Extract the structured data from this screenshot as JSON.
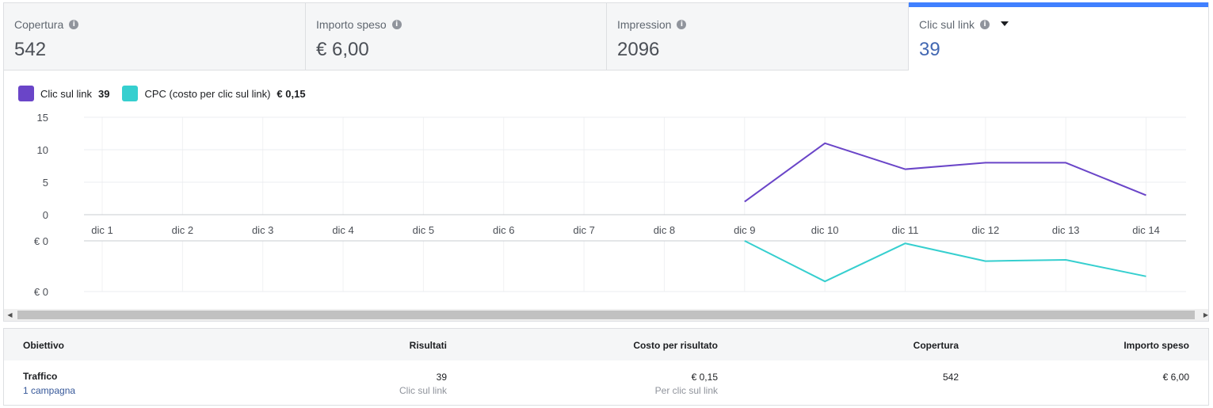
{
  "metrics": [
    {
      "label": "Copertura",
      "value": "542"
    },
    {
      "label": "Importo speso",
      "value": "€ 6,00"
    },
    {
      "label": "Impression",
      "value": "2096"
    },
    {
      "label": "Clic sul link",
      "value": "39",
      "selected": true
    }
  ],
  "info_glyph": "i",
  "legend": [
    {
      "label": "Clic sul link",
      "value": "39",
      "color": "#6a45c8"
    },
    {
      "label": "CPC (costo per clic sul link)",
      "value": "€ 0,15",
      "color": "#36cfcf"
    }
  ],
  "chart_data": {
    "type": "line",
    "categories": [
      "dic 1",
      "dic 2",
      "dic 3",
      "dic 4",
      "dic 5",
      "dic 6",
      "dic 7",
      "dic 8",
      "dic 9",
      "dic 10",
      "dic 11",
      "dic 12",
      "dic 13",
      "dic 14"
    ],
    "top_panel": {
      "ylim": [
        0,
        15
      ],
      "yticks": [
        "0",
        "5",
        "10",
        "15"
      ],
      "series": [
        {
          "name": "Clic sul link",
          "color": "#6a45c8",
          "values": [
            null,
            null,
            null,
            null,
            null,
            null,
            null,
            null,
            2,
            11,
            7,
            8,
            8,
            3
          ]
        }
      ]
    },
    "bottom_panel": {
      "ylim": [
        0,
        0.2
      ],
      "yticks": [
        "€ 0",
        "€ 0"
      ],
      "series": [
        {
          "name": "CPC (costo per clic sul link)",
          "color": "#36cfcf",
          "values": [
            null,
            null,
            null,
            null,
            null,
            null,
            null,
            null,
            0.2,
            0.04,
            0.19,
            0.12,
            0.125,
            0.06
          ]
        }
      ]
    }
  },
  "table": {
    "headers": [
      "Obiettivo",
      "Risultati",
      "Costo per risultato",
      "Copertura",
      "Importo speso"
    ],
    "row": {
      "objective": "Traffico",
      "campaigns": "1 campagna",
      "results": "39",
      "results_sub": "Clic sul link",
      "cost": "€ 0,15",
      "cost_sub": "Per clic sul link",
      "reach": "542",
      "spent": "€ 6,00"
    }
  }
}
